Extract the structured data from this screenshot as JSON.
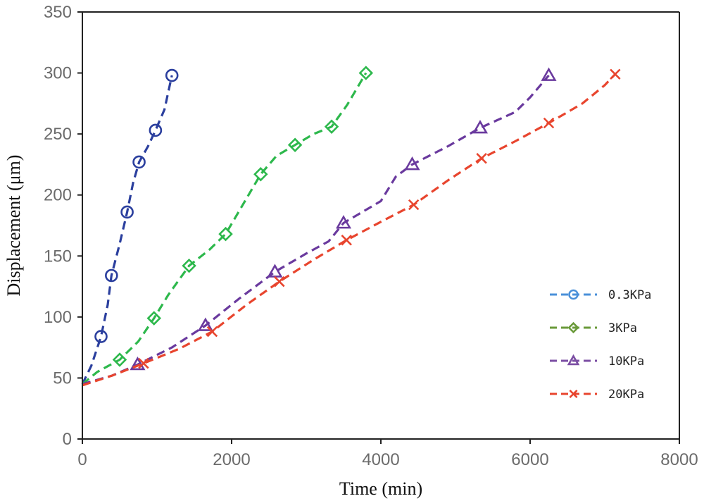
{
  "chart_data": {
    "type": "line",
    "xlabel": "Time (min)",
    "ylabel": "Displacement (μm)",
    "xlim": [
      0,
      8000
    ],
    "ylim": [
      0,
      350
    ],
    "xticks": [
      0,
      2000,
      4000,
      6000,
      8000
    ],
    "yticks": [
      0,
      50,
      100,
      150,
      200,
      250,
      300,
      350
    ],
    "xtick_labels": [
      "0",
      "2000",
      "4000",
      "6000",
      "8000"
    ],
    "ytick_labels": [
      "0",
      "50",
      "100",
      "150",
      "200",
      "250",
      "300",
      "350"
    ],
    "grid": false,
    "legend_position": "right",
    "series": [
      {
        "name": "0.3KPa",
        "color": "#2b3f9e",
        "legend_color": "#4a90d9",
        "marker": "circle",
        "line": [
          [
            0,
            45
          ],
          [
            120,
            60
          ],
          [
            250,
            84
          ],
          [
            340,
            110
          ],
          [
            390,
            134
          ],
          [
            500,
            160
          ],
          [
            600,
            186
          ],
          [
            680,
            210
          ],
          [
            760,
            227
          ],
          [
            880,
            240
          ],
          [
            980,
            253
          ],
          [
            1100,
            270
          ],
          [
            1200,
            298
          ]
        ],
        "markers": [
          [
            250,
            84
          ],
          [
            390,
            134
          ],
          [
            600,
            186
          ],
          [
            760,
            227
          ],
          [
            980,
            253
          ],
          [
            1200,
            298
          ]
        ]
      },
      {
        "name": "3KPa",
        "color": "#2db84c",
        "legend_color": "#6a9a3a",
        "marker": "diamond",
        "line": [
          [
            0,
            45
          ],
          [
            200,
            55
          ],
          [
            500,
            65
          ],
          [
            750,
            80
          ],
          [
            960,
            99
          ],
          [
            1150,
            118
          ],
          [
            1430,
            142
          ],
          [
            1700,
            155
          ],
          [
            1920,
            168
          ],
          [
            2150,
            192
          ],
          [
            2390,
            217
          ],
          [
            2600,
            232
          ],
          [
            2850,
            241
          ],
          [
            3100,
            250
          ],
          [
            3340,
            256
          ],
          [
            3550,
            274
          ],
          [
            3800,
            300
          ]
        ],
        "markers": [
          [
            500,
            65
          ],
          [
            960,
            99
          ],
          [
            1430,
            142
          ],
          [
            1920,
            168
          ],
          [
            2390,
            217
          ],
          [
            2850,
            241
          ],
          [
            3340,
            256
          ],
          [
            3800,
            300
          ]
        ]
      },
      {
        "name": "10KPa",
        "color": "#6a3a9e",
        "legend_color": "#7b4ea3",
        "marker": "triangle",
        "line": [
          [
            0,
            45
          ],
          [
            400,
            52
          ],
          [
            740,
            61
          ],
          [
            1200,
            75
          ],
          [
            1650,
            93
          ],
          [
            2100,
            115
          ],
          [
            2580,
            137
          ],
          [
            3000,
            152
          ],
          [
            3300,
            162
          ],
          [
            3500,
            177
          ],
          [
            4000,
            195
          ],
          [
            4200,
            215
          ],
          [
            4420,
            225
          ],
          [
            4900,
            240
          ],
          [
            5330,
            255
          ],
          [
            5800,
            268
          ],
          [
            6000,
            280
          ],
          [
            6250,
            298
          ]
        ],
        "markers": [
          [
            740,
            61
          ],
          [
            1650,
            93
          ],
          [
            2580,
            137
          ],
          [
            3500,
            177
          ],
          [
            4420,
            225
          ],
          [
            5330,
            255
          ],
          [
            6250,
            298
          ]
        ]
      },
      {
        "name": "20KPa",
        "color": "#e8452e",
        "legend_color": "#e8452e",
        "marker": "x",
        "line": [
          [
            0,
            44
          ],
          [
            400,
            52
          ],
          [
            820,
            62
          ],
          [
            1300,
            74
          ],
          [
            1740,
            88
          ],
          [
            2200,
            110
          ],
          [
            2640,
            129
          ],
          [
            3100,
            147
          ],
          [
            3540,
            163
          ],
          [
            4000,
            178
          ],
          [
            4440,
            192
          ],
          [
            4900,
            212
          ],
          [
            5350,
            230
          ],
          [
            5800,
            244
          ],
          [
            6250,
            259
          ],
          [
            6700,
            275
          ],
          [
            7000,
            290
          ],
          [
            7140,
            299
          ]
        ],
        "markers": [
          [
            820,
            62
          ],
          [
            1740,
            88
          ],
          [
            2640,
            129
          ],
          [
            3540,
            163
          ],
          [
            4440,
            192
          ],
          [
            5350,
            230
          ],
          [
            6250,
            259
          ],
          [
            7140,
            299
          ]
        ]
      }
    ]
  }
}
